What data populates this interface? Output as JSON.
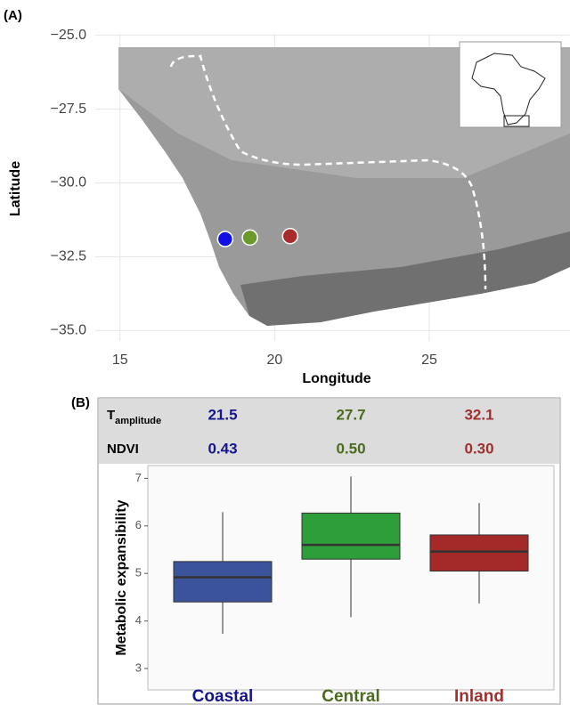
{
  "chart_data": [
    {
      "type": "scatter",
      "title": "(A)",
      "x_label": "Longitude",
      "y_label": "Latitude",
      "xlim": [
        14.2,
        29.55
      ],
      "ylim": [
        -35.35,
        -24.95
      ],
      "xticks": [
        15,
        20,
        25
      ],
      "yticks": [
        {
          "value": -25,
          "label": "−25.0"
        },
        {
          "value": -27.5,
          "label": "−27.5"
        },
        {
          "value": -30,
          "label": "−30.0"
        },
        {
          "value": -32.5,
          "label": "−32.5"
        },
        {
          "value": -35,
          "label": "−35.0"
        }
      ],
      "grid": true,
      "x": [
        18.4,
        19.2,
        20.5
      ],
      "values": [
        -31.9,
        -31.85,
        -31.8
      ],
      "colors": [
        "#1010e6",
        "#6b9a2a",
        "#a82c2c"
      ]
    },
    {
      "type": "box",
      "title": "(B)",
      "y_label": "Metabolic expansibility",
      "categories": [
        "Coastal",
        "Central",
        "Inland"
      ],
      "category_colors": [
        "#16168c",
        "#4b6b1f",
        "#a03030"
      ],
      "colors": [
        "#3a539b",
        "#2e9e3a",
        "#a42a2a"
      ],
      "whisker_low": [
        3.73,
        4.08,
        4.37
      ],
      "q1": [
        4.4,
        5.3,
        5.05
      ],
      "median": [
        4.92,
        5.6,
        5.46
      ],
      "q3": [
        5.25,
        6.27,
        5.81
      ],
      "whisker_high": [
        6.29,
        7.04,
        6.48
      ],
      "ylim": [
        2.55,
        7.27
      ],
      "yticks": [
        3,
        4,
        5,
        6,
        7
      ],
      "stats": [
        {
          "name": "T",
          "subscript": "amplitude",
          "values": [
            21.5,
            27.7,
            32.1
          ]
        },
        {
          "name": "NDVI",
          "values": [
            0.43,
            0.5,
            0.3
          ],
          "value_labels": [
            "0.43",
            "0.50",
            "0.30"
          ]
        }
      ]
    }
  ]
}
